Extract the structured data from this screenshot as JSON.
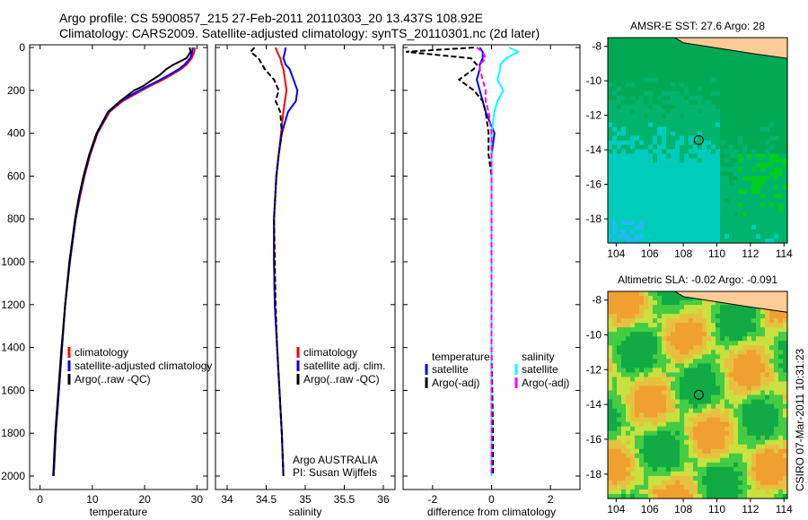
{
  "title_line1": "Argo profile: CS 5900857_215 27-Feb-2011 20110303_20 13.437S 108.92E",
  "title_line2": "Climatology: CARS2009. Satellite-adjusted climatology: synTS_20110301.nc (2d later)",
  "stamp": "CSIRO 07-Mar-2011 10:31:23",
  "colors": {
    "climatology": "#ff0000",
    "satellite": "#0000ff",
    "argo": "#000000",
    "sal_satellite": "#00ffff",
    "sal_argo": "#ff00ff",
    "land": "#ffcc99"
  },
  "chart_data": [
    {
      "type": "line",
      "xlabel": "temperature",
      "ylabel": "",
      "xlim": [
        -2,
        32
      ],
      "ylim": [
        2050,
        0
      ],
      "xticks": [
        0,
        10,
        20,
        30
      ],
      "yticks": [
        0,
        200,
        400,
        600,
        800,
        1000,
        1200,
        1400,
        1600,
        1800,
        2000
      ],
      "depth": [
        0,
        20,
        50,
        80,
        100,
        130,
        150,
        180,
        200,
        250,
        300,
        400,
        500,
        600,
        700,
        800,
        1000,
        1200,
        1400,
        1600,
        1800,
        2000
      ],
      "series": [
        {
          "name": "climatology",
          "color": "#ff0000",
          "values": [
            29.6,
            29.5,
            29,
            28,
            27,
            25,
            23.5,
            21,
            19.5,
            15.8,
            13.3,
            11,
            9.6,
            8.5,
            7.6,
            6.8,
            5.7,
            4.8,
            4.2,
            3.6,
            3,
            2.6
          ]
        },
        {
          "name": "satellite-adjusted climatology",
          "color": "#0000ff",
          "values": [
            29.2,
            29.1,
            28.7,
            27.6,
            26.6,
            24.5,
            23,
            20.6,
            19,
            15.5,
            13.1,
            10.9,
            9.5,
            8.4,
            7.5,
            6.8,
            5.7,
            4.8,
            4.2,
            3.6,
            3,
            2.6
          ]
        },
        {
          "name": "Argo(..raw -QC)",
          "color": "#000000",
          "values": [
            28.6,
            28.8,
            28,
            25.5,
            24.2,
            22.8,
            21.5,
            19.7,
            18,
            15.3,
            13,
            10.8,
            9.4,
            8.3,
            7.4,
            6.7,
            5.6,
            4.8,
            4.1,
            3.5,
            2.9,
            2.5
          ]
        }
      ],
      "legend": [
        "climatology",
        "satellite-adjusted climatology",
        "Argo(..raw -QC)"
      ]
    },
    {
      "type": "line",
      "xlabel": "salinity",
      "xlim": [
        33.85,
        36.15
      ],
      "ylim": [
        2050,
        0
      ],
      "xticks": [
        34,
        34.5,
        35,
        35.5,
        36
      ],
      "depth": [
        0,
        20,
        50,
        80,
        100,
        150,
        200,
        250,
        300,
        400,
        500,
        600,
        800,
        1000,
        1200,
        1400,
        1600,
        1800,
        2000
      ],
      "series": [
        {
          "name": "climatology",
          "color": "#ff0000",
          "values": [
            34.62,
            34.64,
            34.68,
            34.7,
            34.72,
            34.74,
            34.76,
            34.74,
            34.72,
            34.69,
            34.66,
            34.63,
            34.6,
            34.6,
            34.61,
            34.64,
            34.67,
            34.7,
            34.72
          ]
        },
        {
          "name": "satellite adj. clim.",
          "color": "#0000ff",
          "values": [
            34.75,
            34.74,
            34.72,
            34.75,
            34.8,
            34.85,
            34.9,
            34.88,
            34.78,
            34.7,
            34.66,
            34.63,
            34.6,
            34.6,
            34.61,
            34.64,
            34.67,
            34.7,
            34.72
          ]
        },
        {
          "name": "Argo(..raw -QC)",
          "color": "#000000",
          "values": [
            34.35,
            34.3,
            34.4,
            34.45,
            34.48,
            34.6,
            34.66,
            34.62,
            34.68,
            34.7,
            34.66,
            34.63,
            34.6,
            34.61,
            34.62,
            34.64,
            34.67,
            34.7,
            34.72
          ]
        }
      ],
      "legend": [
        "climatology",
        "satellite adj. clim.",
        "Argo(..raw -QC)"
      ],
      "annotations": [
        "Argo AUSTRALIA",
        "PI: Susan Wijffels"
      ]
    },
    {
      "type": "line",
      "xlabel": "difference from climatology",
      "xlim": [
        -3,
        3
      ],
      "ylim": [
        2050,
        0
      ],
      "xticks": [
        -2,
        0,
        2
      ],
      "depth": [
        0,
        20,
        50,
        80,
        100,
        150,
        200,
        250,
        300,
        400,
        500,
        600,
        800,
        1000,
        1400,
        1800,
        2000
      ],
      "series": [
        {
          "name": "temperature satellite",
          "color": "#0000ff",
          "values": [
            -0.4,
            -0.3,
            -0.3,
            -0.4,
            -0.4,
            -0.5,
            -0.4,
            -0.3,
            -0.2,
            0.1,
            0,
            0,
            0,
            0,
            0,
            0,
            0
          ]
        },
        {
          "name": "temperature Argo(-adj)",
          "color": "#000000",
          "values": [
            -0.6,
            -2.9,
            -0.7,
            -0.5,
            -0.6,
            -1.1,
            -0.6,
            -0.3,
            -0.2,
            -0.1,
            -0.1,
            0,
            0,
            0,
            0,
            0.05,
            0.05
          ]
        },
        {
          "name": "salinity satellite",
          "color": "#00ffff",
          "values": [
            0.6,
            0.9,
            0.5,
            0.3,
            0.3,
            0.2,
            0.4,
            0.2,
            0.1,
            0,
            0,
            0,
            0,
            0,
            0,
            0,
            0
          ]
        },
        {
          "name": "salinity Argo(-adj)",
          "color": "#ff00ff",
          "values": [
            -0.5,
            -0.3,
            -0.2,
            -0.4,
            -0.4,
            -0.3,
            -0.2,
            -0.2,
            -0.1,
            0,
            0,
            0,
            0,
            0,
            0,
            0,
            0
          ]
        }
      ],
      "legend_titles": [
        "temperature",
        "salinity"
      ],
      "legend": [
        "satellite",
        "Argo(-adj)",
        "satellite",
        "Argo(-adj)"
      ]
    },
    {
      "type": "heatmap",
      "title": "AMSR-E SST: 27.6 Argo: 28",
      "xticks": [
        104,
        106,
        108,
        110,
        112,
        114
      ],
      "yticks": [
        -8,
        -10,
        -12,
        -14,
        -16,
        -18
      ],
      "xlim": [
        103.5,
        114.2
      ],
      "ylim": [
        -19.4,
        -7.5
      ],
      "marker": [
        108.92,
        -13.437
      ]
    },
    {
      "type": "heatmap",
      "title": "Altimetric SLA: -0.02 Argo: -0.091",
      "xticks": [
        104,
        106,
        108,
        110,
        112,
        114
      ],
      "yticks": [
        -8,
        -10,
        -12,
        -14,
        -16,
        -18
      ],
      "xlim": [
        103.5,
        114.2
      ],
      "ylim": [
        -19.4,
        -7.5
      ],
      "marker": [
        108.92,
        -13.437
      ]
    }
  ]
}
